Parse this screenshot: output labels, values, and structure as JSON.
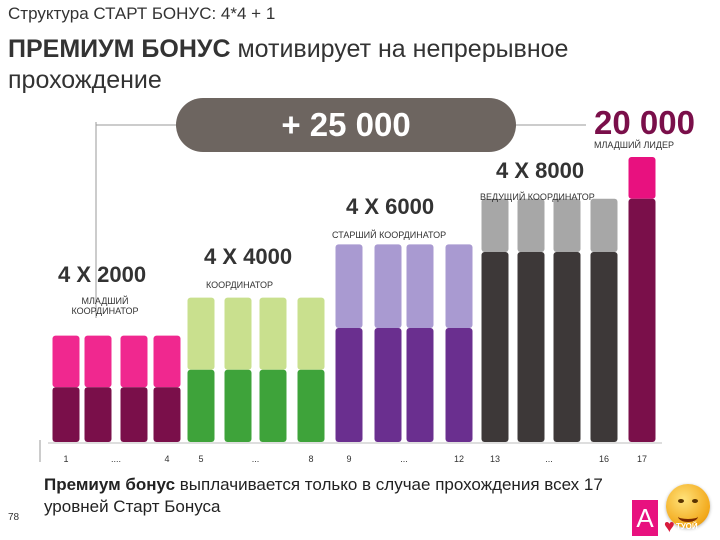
{
  "header": {
    "small_title": "Структура СТАРТ БОНУС: 4*4 + 1",
    "heading_bold": "ПРЕМИУМ БОНУС",
    "heading_rest": " мотивирует на непрерывное прохождение"
  },
  "bonus_pill": "+ 25 000",
  "chart_data": {
    "type": "bar",
    "x": [
      "1",
      "2",
      "3",
      "4",
      "5",
      "6",
      "7",
      "8",
      "9",
      "10",
      "11",
      "12",
      "13",
      "14",
      "15",
      "16",
      "17"
    ],
    "tick_labels": [
      {
        "label": "1",
        "bar": 1
      },
      {
        "label": "....",
        "bar": 2.5
      },
      {
        "label": "4",
        "bar": 4
      },
      {
        "label": "5",
        "bar": 5
      },
      {
        "label": "...",
        "bar": 6.5
      },
      {
        "label": "8",
        "bar": 8
      },
      {
        "label": "9",
        "bar": 9
      },
      {
        "label": "...",
        "bar": 10.5
      },
      {
        "label": "12",
        "bar": 12
      },
      {
        "label": "13",
        "bar": 13
      },
      {
        "label": "...",
        "bar": 14.5
      },
      {
        "label": "16",
        "bar": 16
      },
      {
        "label": "17",
        "bar": 17
      }
    ],
    "groups": [
      {
        "bars": [
          1,
          2,
          3,
          4
        ],
        "reward": "4 X 2000",
        "caption": "МЛАДШИЙ КООРДИНАТОР",
        "upper_color": "#f0288f",
        "lower_color": "#7a0f4a",
        "total": 1.4,
        "lower": 0.72
      },
      {
        "bars": [
          5,
          6,
          7,
          8
        ],
        "reward": "4 X 4000",
        "caption": "КООРДИНАТОР",
        "upper_color": "#c9e08e",
        "lower_color": "#3ea33a",
        "total": 1.9,
        "lower": 0.95
      },
      {
        "bars": [
          9,
          10,
          11,
          12
        ],
        "reward": "4 X 6000",
        "caption": "СТАРШИЙ КООРДИНАТОР",
        "upper_color": "#a99ad1",
        "lower_color": "#6a2f8f",
        "total": 2.6,
        "lower": 1.5
      },
      {
        "bars": [
          13,
          14,
          15,
          16
        ],
        "reward": "4 X 8000",
        "caption": "ВЕДУЩИЙ КООРДИНАТОР",
        "upper_color": "#a7a7a7",
        "lower_color": "#3d3838",
        "total": 3.2,
        "lower": 2.5
      },
      {
        "bars": [
          17
        ],
        "reward": "20 000",
        "caption": "МЛАДШИЙ ЛИДЕР",
        "upper_color": "#e8117f",
        "lower_color": "#7a0f4a",
        "total": 3.75,
        "lower": 3.2
      }
    ],
    "title": "",
    "xlabel": "",
    "ylabel": "",
    "grid": false,
    "legend": "none"
  },
  "footnote": {
    "bold": "Премиум бонус",
    "rest": " выплачивается только в случае прохождения всех 17 уровней Старт Бонуса"
  },
  "page_number": "78",
  "logo_letter": "A",
  "sticker_text": "ТУОЙ"
}
